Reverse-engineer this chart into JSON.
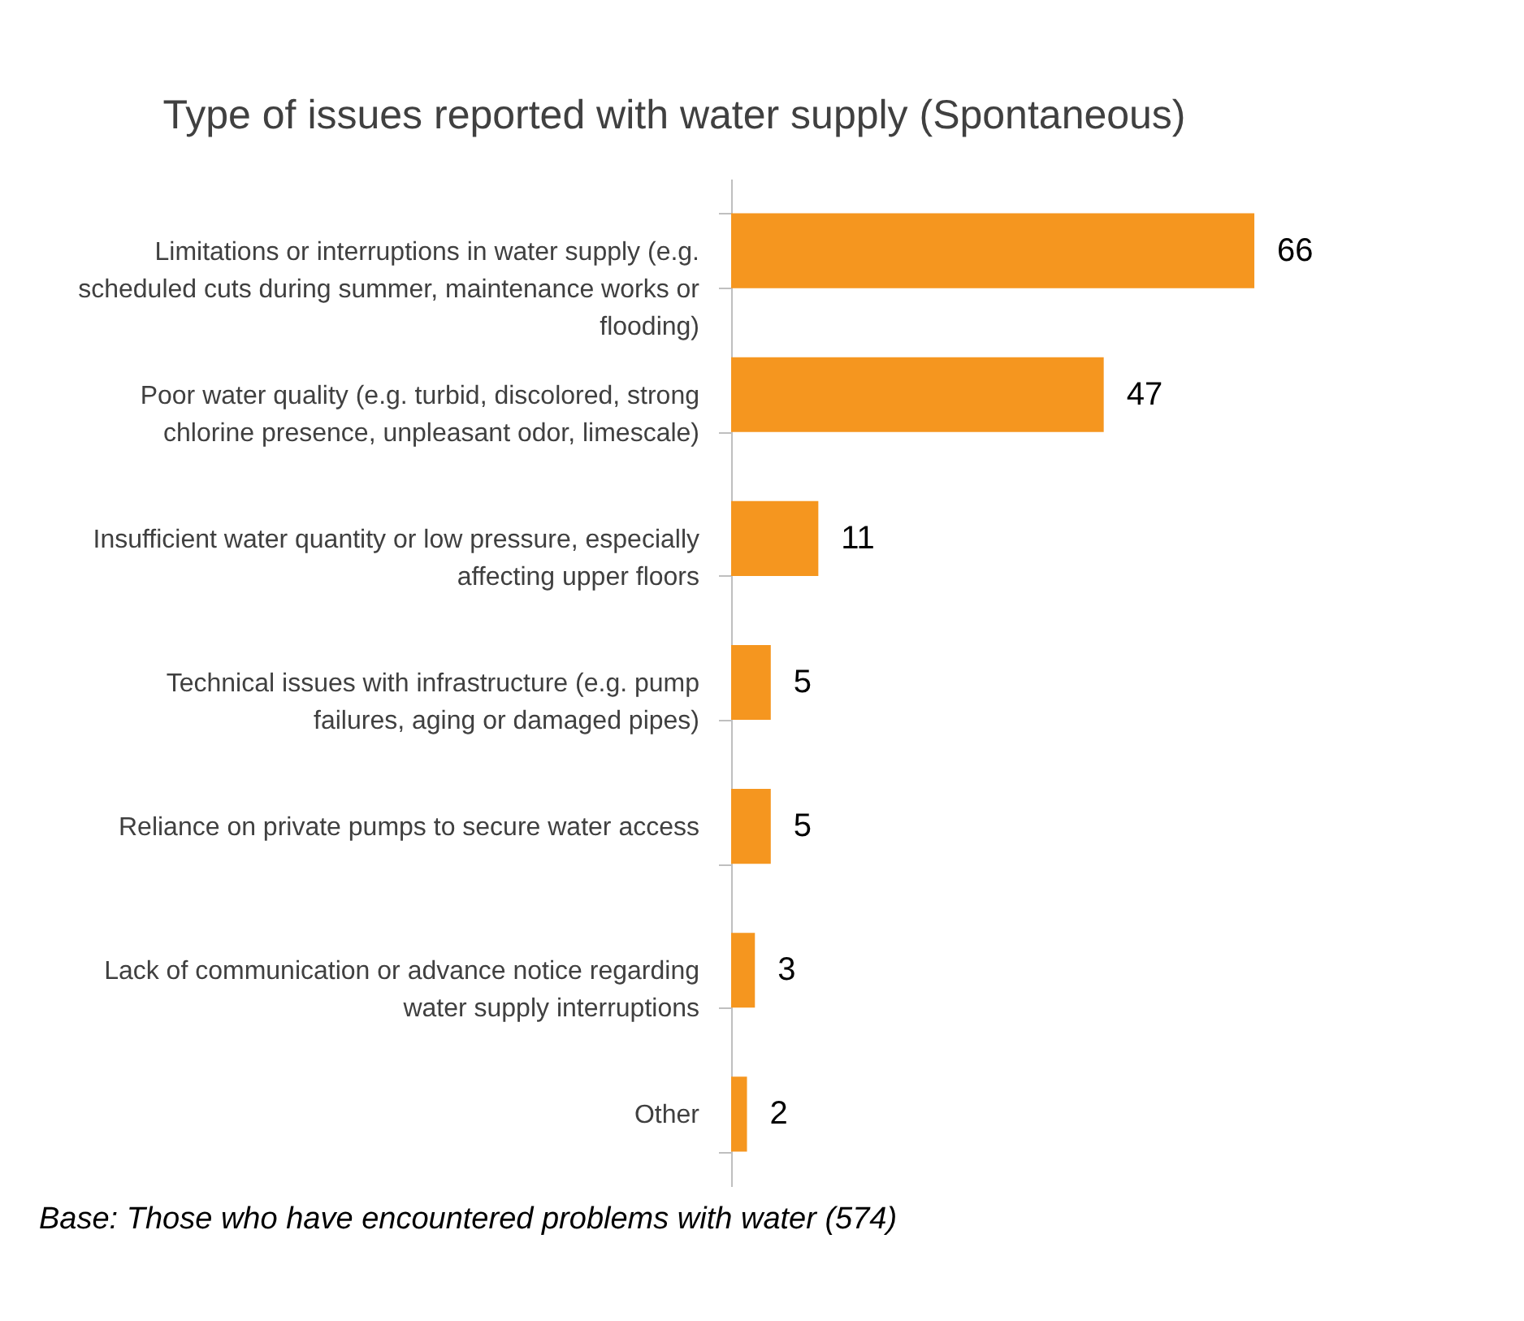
{
  "chart_data": {
    "type": "bar",
    "orientation": "horizontal",
    "title": "Type of issues reported with water supply (Spontaneous)",
    "categories": [
      "Limitations or interruptions in water supply (e.g. scheduled cuts during summer, maintenance works or flooding)",
      "Poor water quality (e.g. turbid, discolored, strong chlorine presence, unpleasant odor, limescale)",
      "Insufficient water quantity or low pressure, especially affecting upper floors",
      "Technical issues with infrastructure (e.g. pump failures, aging or damaged pipes)",
      "Reliance on private pumps to secure water access",
      "Lack of communication or advance notice regarding water supply interruptions",
      "Other"
    ],
    "values": [
      66,
      47,
      11,
      5,
      5,
      3,
      2
    ],
    "color": "#f5961f",
    "data_labels": true,
    "annotations": [
      "Base: Those who have encountered problems with water (574)"
    ]
  }
}
